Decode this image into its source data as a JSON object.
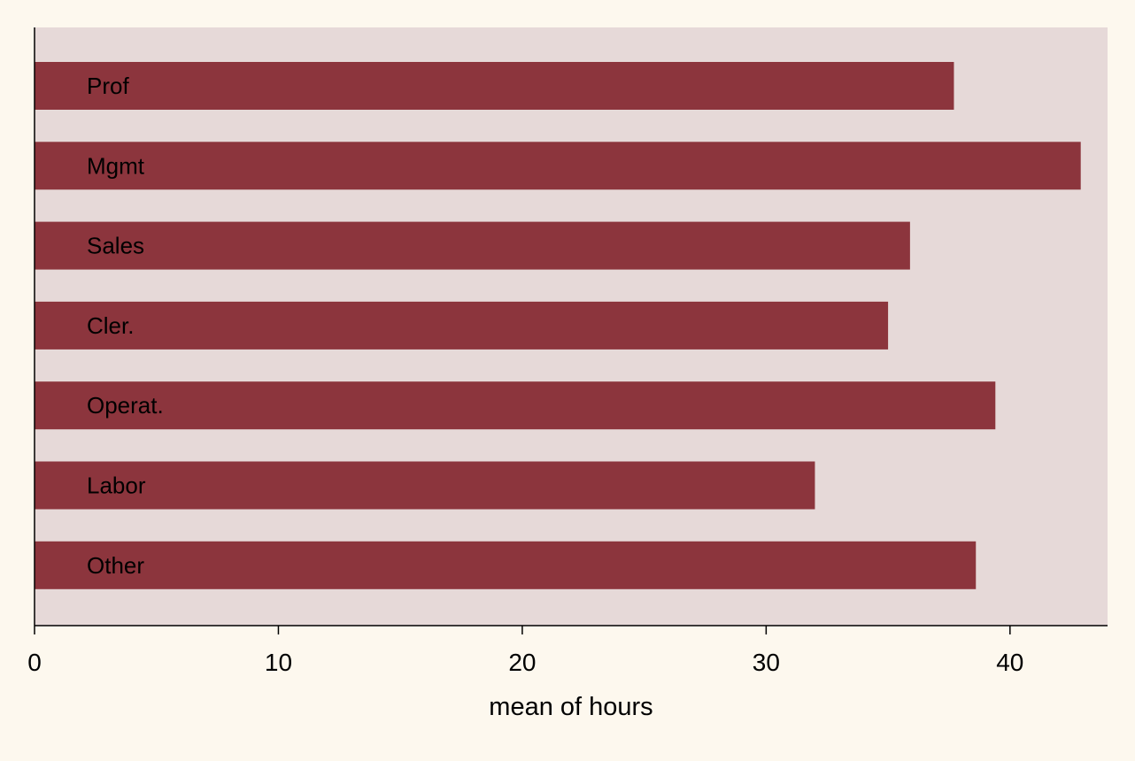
{
  "chart_data": {
    "type": "bar",
    "orientation": "horizontal",
    "categories": [
      "Prof",
      "Mgmt",
      "Sales",
      "Cler.",
      "Operat.",
      "Labor",
      "Other"
    ],
    "values": [
      37.7,
      42.9,
      35.9,
      35.0,
      39.4,
      32.0,
      38.6
    ],
    "xlabel": "mean of hours",
    "xlim": [
      0,
      44
    ],
    "xticks": [
      0,
      10,
      20,
      30,
      40
    ],
    "xtick_labels": [
      "0",
      "10",
      "20",
      "30",
      "40"
    ],
    "grid": false,
    "legend": "none",
    "category_labels_inside_bars": true
  },
  "colors": {
    "page_background": "#fdf8ee",
    "plot_background": "#e6d9d8",
    "bar_fill": "#8c353d",
    "axis": "#000000",
    "text": "#000000"
  }
}
